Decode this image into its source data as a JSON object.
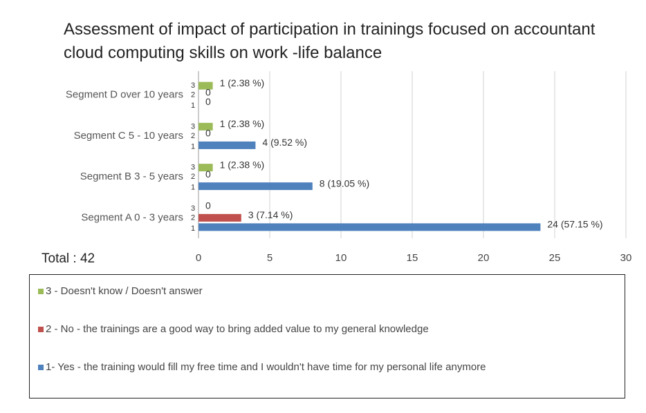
{
  "chart_data": {
    "type": "bar",
    "orientation": "horizontal",
    "title": "Assessment of impact of participation in trainings focused on accountant cloud computing skills on work -life balance",
    "categories": [
      "Segment D over 10 years",
      "Segment C 5 - 10 years",
      "Segment B 3 - 5 years",
      "Segment A 0 - 3 years"
    ],
    "series": [
      {
        "name": "3 - Doesn't know / Doesn't answer",
        "short": "3",
        "color": "#9bbb59",
        "values": [
          1,
          1,
          1,
          0
        ],
        "value_labels": [
          "1 (2.38 %)",
          "1 (2.38 %)",
          "1 (2.38 %)",
          "0"
        ]
      },
      {
        "name": "2 - No - the trainings are a good way to bring added value to my general knowledge",
        "short": "2",
        "color": "#c0504d",
        "values": [
          0,
          0,
          0,
          3
        ],
        "value_labels": [
          "0",
          "0",
          "0",
          "3 (7.14 %)"
        ]
      },
      {
        "name": "1- Yes - the training would fill my free time and I wouldn't have time for my personal life anymore",
        "short": "1",
        "color": "#4f81bd",
        "values": [
          0,
          4,
          8,
          24
        ],
        "value_labels": [
          "0",
          "4 (9.52 %)",
          "8 (19.05 %)",
          "24 (57.15 %)"
        ]
      }
    ],
    "annotation": "Total : 42",
    "xlim": [
      0,
      30
    ],
    "xticks": [
      0,
      5,
      10,
      15,
      20,
      25,
      30
    ],
    "grid": true
  }
}
